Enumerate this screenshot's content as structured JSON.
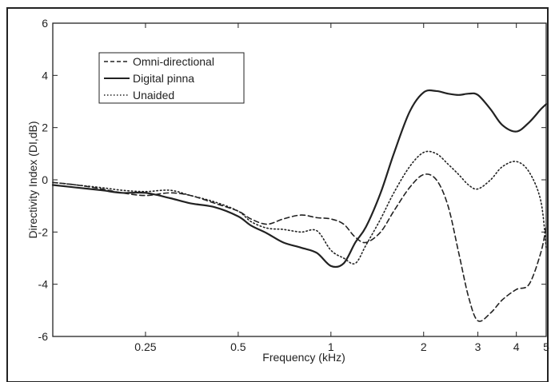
{
  "chart_data": {
    "type": "line",
    "title": "",
    "xlabel": "Frequency (kHz)",
    "ylabel": "Directivity Index (DI,dB)",
    "xscale": "log",
    "xlim": [
      0.125,
      5
    ],
    "ylim": [
      -6,
      6
    ],
    "grid": false,
    "legend_position": "top-left",
    "x_ticks": [
      0.25,
      0.5,
      1,
      2,
      3,
      4,
      5
    ],
    "x_tick_labels": [
      "0.25",
      "0.5",
      "1",
      "2",
      "3",
      "4",
      "5"
    ],
    "y_ticks": [
      -6,
      -4,
      -2,
      0,
      2,
      4,
      6
    ],
    "y_tick_labels": [
      "-6",
      "-4",
      "-2",
      "0",
      "2",
      "4",
      "6"
    ],
    "series": [
      {
        "name": "Omni-directional",
        "style": "dashed",
        "points": [
          [
            0.125,
            -0.1
          ],
          [
            0.15,
            -0.2
          ],
          [
            0.18,
            -0.35
          ],
          [
            0.21,
            -0.5
          ],
          [
            0.25,
            -0.6
          ],
          [
            0.3,
            -0.5
          ],
          [
            0.35,
            -0.6
          ],
          [
            0.42,
            -0.9
          ],
          [
            0.5,
            -1.2
          ],
          [
            0.55,
            -1.5
          ],
          [
            0.62,
            -1.7
          ],
          [
            0.7,
            -1.5
          ],
          [
            0.8,
            -1.35
          ],
          [
            0.9,
            -1.45
          ],
          [
            1.0,
            -1.5
          ],
          [
            1.1,
            -1.7
          ],
          [
            1.2,
            -2.2
          ],
          [
            1.3,
            -2.4
          ],
          [
            1.45,
            -2.0
          ],
          [
            1.6,
            -1.2
          ],
          [
            1.8,
            -0.3
          ],
          [
            2.0,
            0.2
          ],
          [
            2.2,
            0.0
          ],
          [
            2.4,
            -1.0
          ],
          [
            2.6,
            -2.8
          ],
          [
            2.8,
            -4.5
          ],
          [
            3.0,
            -5.4
          ],
          [
            3.3,
            -5.1
          ],
          [
            3.6,
            -4.6
          ],
          [
            4.0,
            -4.2
          ],
          [
            4.4,
            -4.0
          ],
          [
            4.8,
            -2.8
          ],
          [
            5.0,
            -1.8
          ]
        ]
      },
      {
        "name": "Digital pinna",
        "style": "solid",
        "points": [
          [
            0.125,
            -0.2
          ],
          [
            0.15,
            -0.3
          ],
          [
            0.18,
            -0.4
          ],
          [
            0.21,
            -0.5
          ],
          [
            0.25,
            -0.5
          ],
          [
            0.3,
            -0.7
          ],
          [
            0.35,
            -0.9
          ],
          [
            0.42,
            -1.05
          ],
          [
            0.5,
            -1.4
          ],
          [
            0.55,
            -1.75
          ],
          [
            0.62,
            -2.05
          ],
          [
            0.7,
            -2.4
          ],
          [
            0.8,
            -2.6
          ],
          [
            0.9,
            -2.8
          ],
          [
            1.0,
            -3.3
          ],
          [
            1.1,
            -3.2
          ],
          [
            1.2,
            -2.4
          ],
          [
            1.3,
            -1.8
          ],
          [
            1.45,
            -0.5
          ],
          [
            1.6,
            1.0
          ],
          [
            1.8,
            2.6
          ],
          [
            2.0,
            3.35
          ],
          [
            2.2,
            3.4
          ],
          [
            2.4,
            3.3
          ],
          [
            2.6,
            3.25
          ],
          [
            2.8,
            3.3
          ],
          [
            3.0,
            3.25
          ],
          [
            3.3,
            2.7
          ],
          [
            3.6,
            2.1
          ],
          [
            4.0,
            1.85
          ],
          [
            4.4,
            2.2
          ],
          [
            4.8,
            2.7
          ],
          [
            5.0,
            2.9
          ]
        ]
      },
      {
        "name": "Unaided",
        "style": "dotted",
        "points": [
          [
            0.125,
            -0.1
          ],
          [
            0.15,
            -0.2
          ],
          [
            0.18,
            -0.3
          ],
          [
            0.21,
            -0.4
          ],
          [
            0.25,
            -0.45
          ],
          [
            0.3,
            -0.4
          ],
          [
            0.35,
            -0.6
          ],
          [
            0.42,
            -0.85
          ],
          [
            0.5,
            -1.2
          ],
          [
            0.55,
            -1.6
          ],
          [
            0.62,
            -1.85
          ],
          [
            0.7,
            -1.9
          ],
          [
            0.8,
            -2.0
          ],
          [
            0.9,
            -1.95
          ],
          [
            1.0,
            -2.7
          ],
          [
            1.1,
            -3.0
          ],
          [
            1.2,
            -3.2
          ],
          [
            1.3,
            -2.5
          ],
          [
            1.45,
            -1.5
          ],
          [
            1.6,
            -0.5
          ],
          [
            1.8,
            0.5
          ],
          [
            2.0,
            1.05
          ],
          [
            2.2,
            1.0
          ],
          [
            2.4,
            0.6
          ],
          [
            2.6,
            0.2
          ],
          [
            2.8,
            -0.2
          ],
          [
            3.0,
            -0.35
          ],
          [
            3.3,
            0.0
          ],
          [
            3.6,
            0.5
          ],
          [
            4.0,
            0.7
          ],
          [
            4.4,
            0.3
          ],
          [
            4.8,
            -0.8
          ],
          [
            5.0,
            -2.6
          ]
        ]
      }
    ]
  }
}
